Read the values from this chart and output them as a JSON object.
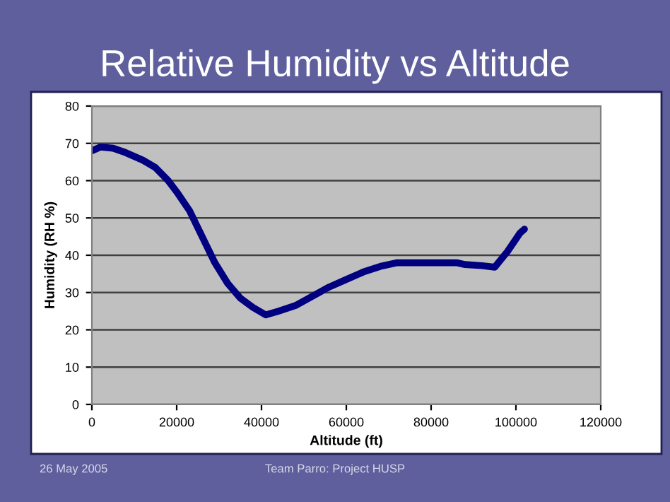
{
  "chart_data": {
    "type": "line",
    "title": "Relative Humidity vs Altitude",
    "xlabel": "Altitude (ft)",
    "ylabel": "Humidity (RH %)",
    "x": [
      0,
      2000,
      5000,
      8000,
      12000,
      15000,
      18000,
      20000,
      23000,
      26000,
      29000,
      32000,
      35000,
      38000,
      41000,
      44000,
      48000,
      52000,
      56000,
      60000,
      64000,
      68000,
      72000,
      76000,
      80000,
      86000,
      88000,
      92000,
      95000,
      98000,
      101000,
      102000
    ],
    "series": [
      {
        "color": "#000080",
        "values": [
          68,
          69,
          68.7,
          67.5,
          65.5,
          63.5,
          60,
          57,
          52,
          45,
          38,
          32.5,
          28.5,
          26,
          24,
          25,
          26.5,
          29,
          31.5,
          33.5,
          35.5,
          37,
          38,
          38,
          38,
          38,
          37.5,
          37.2,
          36.8,
          41,
          46,
          47
        ]
      }
    ],
    "xlim": [
      0,
      120000
    ],
    "xticks": [
      0,
      20000,
      40000,
      60000,
      80000,
      100000,
      120000
    ],
    "ylim": [
      0,
      80
    ],
    "yticks": [
      0,
      10,
      20,
      30,
      40,
      50,
      60,
      70,
      80
    ],
    "grid": "y",
    "legend": false,
    "marker": "none",
    "line_style": "solid",
    "annotations": [
      "26 May 2005",
      "Team Parro: Project HUSP"
    ]
  }
}
